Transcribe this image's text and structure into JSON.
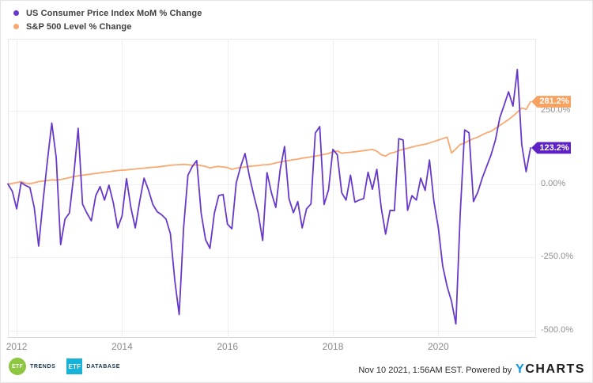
{
  "legend": {
    "items": [
      {
        "label": "US Consumer Price Index MoM % Change",
        "color": "#6739cb"
      },
      {
        "label": "S&P 500 Level % Change",
        "color": "#f9a870"
      }
    ]
  },
  "chart_data": {
    "type": "line",
    "title": "",
    "x_start": "2011-11",
    "frequency": "monthly",
    "x_tick_labels": [
      "2012",
      "2014",
      "2016",
      "2018",
      "2020"
    ],
    "y_axis": {
      "tick_labels": [
        "250.0%",
        "0.00%",
        "-250.0%",
        "-500.0%"
      ],
      "tick_values": [
        250,
        0,
        -250,
        -500
      ],
      "ylim": [
        -523,
        496
      ]
    },
    "grid": true,
    "legend_position": "top-left",
    "series": [
      {
        "name": "S&P 500 Level % Change",
        "color": "#f9a870",
        "badge_color": "#f9a15e",
        "end_label": "281.2%",
        "values": [
          0,
          2,
          5,
          8,
          3,
          1,
          4,
          8,
          10,
          12,
          14,
          13,
          15,
          18,
          22,
          25,
          28,
          30,
          32,
          34,
          36,
          38,
          40,
          42,
          44,
          46,
          47,
          48,
          50,
          51,
          53,
          54,
          56,
          57,
          58,
          60,
          62,
          64,
          65,
          66,
          67,
          66,
          64,
          65,
          63,
          60,
          55,
          58,
          60,
          58,
          56,
          50,
          54,
          56,
          58,
          60,
          62,
          63,
          65,
          66,
          68,
          72,
          75,
          78,
          80,
          83,
          85,
          88,
          90,
          93,
          95,
          98,
          101,
          104,
          110,
          113,
          105,
          107,
          108,
          110,
          112,
          114,
          116,
          118,
          112,
          100,
          95,
          105,
          108,
          114,
          118,
          122,
          126,
          130,
          133,
          136,
          140,
          145,
          150,
          155,
          160,
          106,
          120,
          135,
          140,
          148,
          155,
          160,
          168,
          175,
          180,
          190,
          200,
          210,
          220,
          232,
          245,
          260,
          255,
          281.2
        ]
      },
      {
        "name": "US Consumer Price Index MoM % Change",
        "color": "#6739cb",
        "badge_color": "#5e22c4",
        "end_label": "123.2%",
        "values": [
          0,
          -25,
          -85,
          5,
          -5,
          -12,
          -80,
          -212,
          -60,
          80,
          208,
          90,
          -207,
          -120,
          -99,
          30,
          190,
          -69,
          -100,
          -126,
          -40,
          -9,
          -55,
          -4,
          -64,
          -150,
          -109,
          18,
          -80,
          -150,
          -60,
          20,
          -20,
          -70,
          -95,
          -105,
          -120,
          -170,
          -330,
          -446,
          -150,
          30,
          60,
          80,
          -99,
          -190,
          -220,
          -100,
          -40,
          -36,
          -137,
          -153,
          4,
          60,
          104,
          26,
          -40,
          -99,
          -193,
          39,
          -30,
          -80,
          50,
          128,
          -50,
          -98,
          -60,
          -150,
          -85,
          -68,
          174,
          196,
          -70,
          -20,
          118,
          100,
          -30,
          -55,
          30,
          -62,
          -55,
          -50,
          40,
          -18,
          50,
          -80,
          -171,
          -90,
          -91,
          155,
          150,
          -90,
          -40,
          -55,
          20,
          -22,
          82,
          -60,
          -150,
          -280,
          -350,
          -400,
          -478,
          -100,
          185,
          175,
          -60,
          -28,
          20,
          60,
          99,
          150,
          226,
          270,
          315,
          266,
          391,
          134,
          42,
          123.2
        ]
      }
    ]
  },
  "footer": {
    "logos": [
      {
        "name": "ETF Trends",
        "abbr": "ETF",
        "word": "TRENDS"
      },
      {
        "name": "ETF Database",
        "abbr": "ETF",
        "word": "DATABASE"
      }
    ],
    "timestamp": "Nov 10 2021, 1:56AM EST.",
    "powered_by": "Powered by",
    "ycharts_y": "Y",
    "ycharts_rest": "CHARTS"
  }
}
